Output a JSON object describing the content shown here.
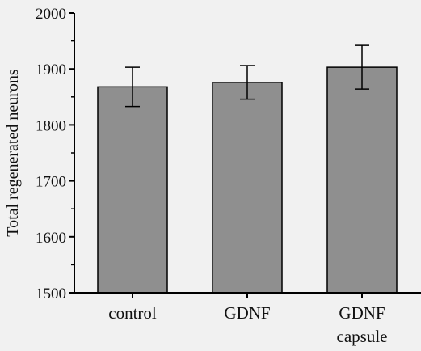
{
  "chart_data": {
    "type": "bar",
    "title": "",
    "xlabel": "",
    "ylabel": "Total regenerated neurons",
    "categories": [
      [
        "control"
      ],
      [
        "GDNF"
      ],
      [
        "GDNF",
        "capsule"
      ]
    ],
    "values": [
      1868,
      1876,
      1903
    ],
    "error_upper": [
      1903,
      1906,
      1942
    ],
    "error_lower": [
      1833,
      1846,
      1864
    ],
    "ylim": [
      1500,
      2000
    ],
    "yticks": [
      1500,
      1600,
      1700,
      1800,
      1900,
      2000
    ],
    "grid": false,
    "legend": "none",
    "colors": {
      "bar_fill": "#8f8f8f",
      "bar_stroke": "#000000",
      "axis": "#000000",
      "background": "#f1f1f1"
    }
  }
}
